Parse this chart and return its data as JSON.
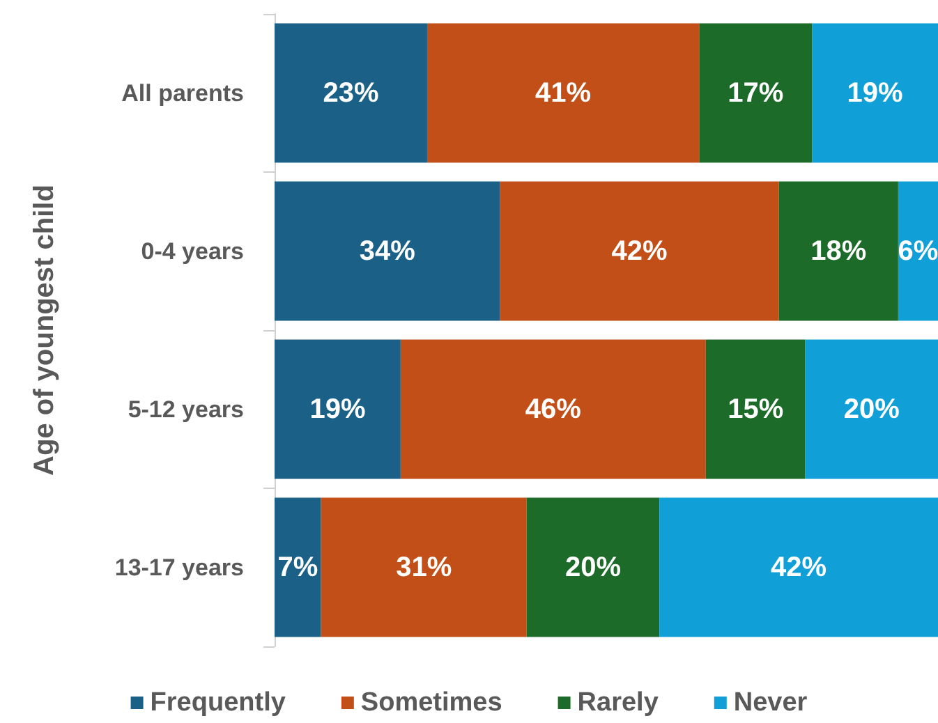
{
  "chart_data": {
    "type": "bar",
    "orientation": "horizontal",
    "stacked": true,
    "ylabel": "Age of youngest child",
    "categories": [
      "All parents",
      "0-4 years",
      "5-12 years",
      "13-17 years"
    ],
    "series": [
      {
        "name": "Frequently",
        "color": "#1b6187",
        "values": [
          23,
          34,
          19,
          7
        ],
        "value_labels": [
          "23%",
          "34%",
          "19%",
          "7%"
        ]
      },
      {
        "name": "Sometimes",
        "color": "#c24f18",
        "values": [
          41,
          42,
          46,
          31
        ],
        "value_labels": [
          "41%",
          "42%",
          "46%",
          "31%"
        ]
      },
      {
        "name": "Rarely",
        "color": "#1d6b28",
        "values": [
          17,
          18,
          15,
          20
        ],
        "value_labels": [
          "17%",
          "18%",
          "15%",
          "20%"
        ]
      },
      {
        "name": "Never",
        "color": "#109fd6",
        "values": [
          19,
          6,
          20,
          42
        ],
        "value_labels": [
          "19%",
          "6%",
          "20%",
          "42%"
        ]
      }
    ],
    "xlim": [
      0,
      100
    ],
    "tick_labels": "y",
    "legend": "bottom",
    "grid": false
  }
}
